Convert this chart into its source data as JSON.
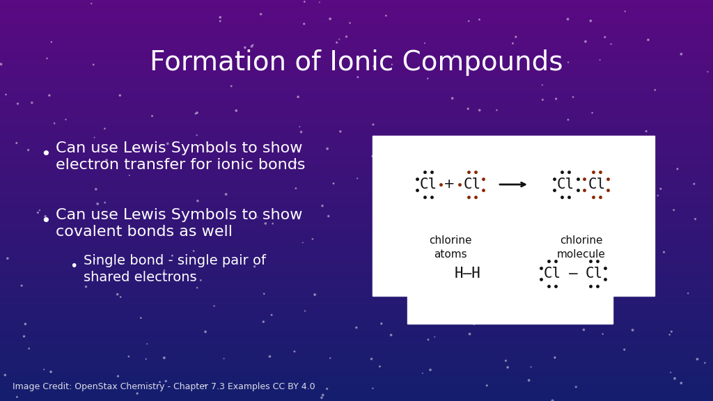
{
  "title": "Formation of Ionic Compounds",
  "title_color": "#ffffff",
  "title_fontsize": 28,
  "bullet1_line1": "Can use Lewis Symbols to show",
  "bullet1_line2": "electron transfer for ionic bonds",
  "bullet2_line1": "Can use Lewis Symbols to show",
  "bullet2_line2": "covalent bonds as well",
  "subbullet_line1": "Single bond - single pair of",
  "subbullet_line2": "shared electrons",
  "credit": "Image Credit: OpenStax Chemistry - Chapter 7.3 Examples CC BY 4.0",
  "text_color": "#ffffff",
  "bullet_fontsize": 16,
  "subbullet_fontsize": 14,
  "credit_fontsize": 9,
  "dot_black": "#111111",
  "dot_red": "#8b2500",
  "bg_top": "#5c0080",
  "bg_mid": "#7b1fa2",
  "bg_bot": "#1a237e"
}
